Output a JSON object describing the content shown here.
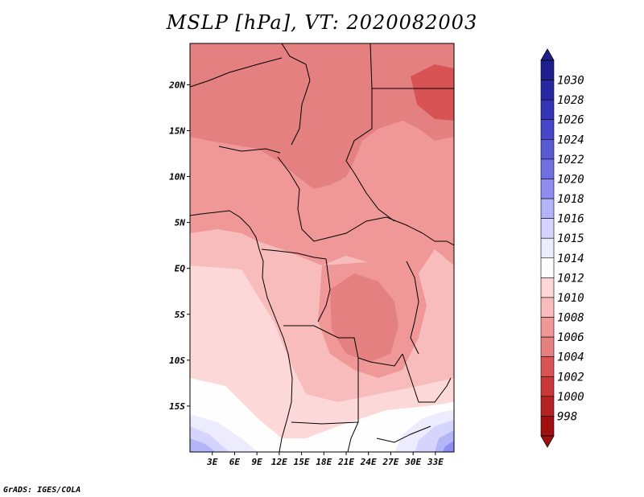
{
  "title": "MSLP [hPa], VT: 2020082003",
  "credit": "GrADS: IGES/COLA",
  "map": {
    "lon_range": [
      0,
      35.5
    ],
    "lat_range": [
      -20,
      24.5
    ],
    "x_ticks": [
      "3E",
      "6E",
      "9E",
      "12E",
      "15E",
      "18E",
      "21E",
      "24E",
      "27E",
      "30E",
      "33E"
    ],
    "y_ticks": [
      "20N",
      "15N",
      "10N",
      "5N",
      "EQ",
      "5S",
      "10S",
      "15S"
    ]
  },
  "colorbar": {
    "labels": [
      "1030",
      "1028",
      "1026",
      "1024",
      "1022",
      "1020",
      "1018",
      "1016",
      "1015",
      "1014",
      "1012",
      "1010",
      "1008",
      "1006",
      "1004",
      "1002",
      "1000",
      "998"
    ],
    "colors": [
      "#1e1e8c",
      "#2828a0",
      "#3434b4",
      "#4646c8",
      "#5a5ad2",
      "#7070e0",
      "#8e8ef0",
      "#b4b4f8",
      "#d4d4fc",
      "#ececfe",
      "#fefefe",
      "#fcd8d8",
      "#f8bcbc",
      "#f09898",
      "#e48080",
      "#d85454",
      "#c83838",
      "#b42424",
      "#a01010"
    ]
  }
}
